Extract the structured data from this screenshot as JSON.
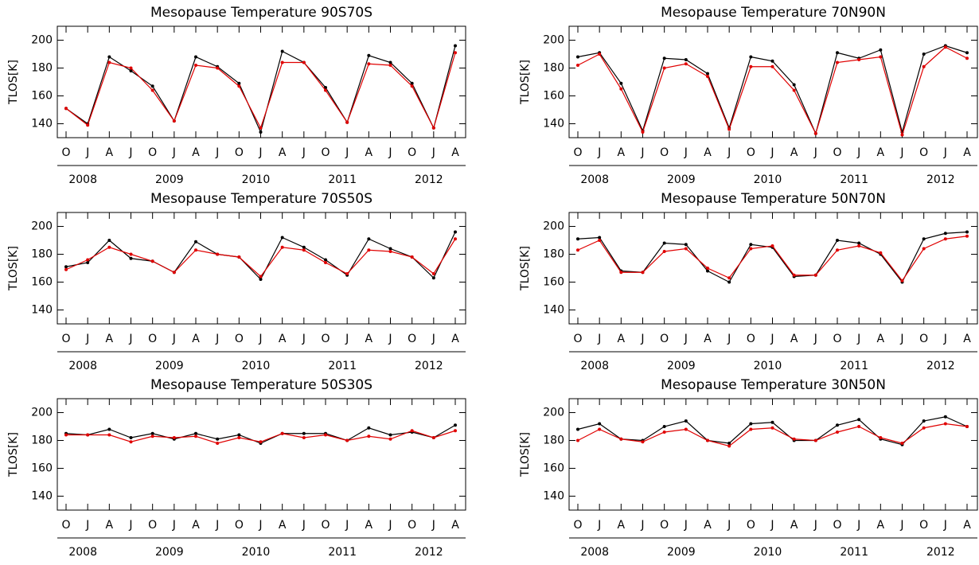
{
  "chart_data": [
    {
      "type": "line",
      "title": "Mesopause Temperature 90S70S",
      "y_label": "TLOS[K]",
      "categories": [
        "O",
        "J",
        "A",
        "J",
        "O",
        "J",
        "A",
        "J",
        "O",
        "J",
        "A",
        "J",
        "O",
        "J",
        "A",
        "J",
        "O",
        "J",
        "A"
      ],
      "year_labels": [
        "2008",
        "2009",
        "2010",
        "2011",
        "2012"
      ],
      "ylim": [
        130,
        210
      ],
      "yticks": [
        140,
        160,
        180,
        200
      ],
      "series": [
        {
          "color": "#000000",
          "values": [
            151,
            140,
            188,
            178,
            167,
            142,
            188,
            181,
            169,
            134,
            192,
            184,
            166,
            141,
            189,
            184,
            169,
            137,
            196
          ]
        },
        {
          "color": "#e00000",
          "values": [
            151,
            139,
            184,
            180,
            164,
            142,
            182,
            180,
            167,
            137,
            184,
            184,
            164,
            141,
            183,
            182,
            167,
            137,
            191
          ]
        }
      ]
    },
    {
      "type": "line",
      "title": "Mesopause Temperature 70N90N",
      "y_label": "TLOS[K]",
      "categories": [
        "O",
        "J",
        "A",
        "J",
        "O",
        "J",
        "A",
        "J",
        "O",
        "J",
        "A",
        "J",
        "O",
        "J",
        "A",
        "J",
        "O",
        "J",
        "A"
      ],
      "year_labels": [
        "2008",
        "2009",
        "2010",
        "2011",
        "2012"
      ],
      "ylim": [
        130,
        210
      ],
      "yticks": [
        140,
        160,
        180,
        200
      ],
      "series": [
        {
          "color": "#000000",
          "values": [
            188,
            191,
            169,
            135,
            187,
            186,
            176,
            137,
            188,
            185,
            168,
            133,
            191,
            187,
            193,
            134,
            190,
            196,
            191
          ]
        },
        {
          "color": "#e00000",
          "values": [
            182,
            190,
            165,
            134,
            180,
            183,
            174,
            136,
            181,
            181,
            164,
            133,
            184,
            186,
            188,
            132,
            181,
            195,
            187
          ]
        }
      ]
    },
    {
      "type": "line",
      "title": "Mesopause Temperature 70S50S",
      "y_label": "TLOS[K]",
      "categories": [
        "O",
        "J",
        "A",
        "J",
        "O",
        "J",
        "A",
        "J",
        "O",
        "J",
        "A",
        "J",
        "O",
        "J",
        "A",
        "J",
        "O",
        "J",
        "A"
      ],
      "year_labels": [
        "2008",
        "2009",
        "2010",
        "2011",
        "2012"
      ],
      "ylim": [
        130,
        210
      ],
      "yticks": [
        140,
        160,
        180,
        200
      ],
      "series": [
        {
          "color": "#000000",
          "values": [
            171,
            174,
            190,
            177,
            175,
            167,
            189,
            180,
            178,
            162,
            192,
            185,
            176,
            165,
            191,
            184,
            178,
            163,
            196
          ]
        },
        {
          "color": "#e00000",
          "values": [
            169,
            176,
            185,
            180,
            175,
            167,
            183,
            180,
            178,
            164,
            185,
            183,
            174,
            166,
            183,
            182,
            178,
            166,
            191
          ]
        }
      ]
    },
    {
      "type": "line",
      "title": "Mesopause Temperature 50N70N",
      "y_label": "TLOS[K]",
      "categories": [
        "O",
        "J",
        "A",
        "J",
        "O",
        "J",
        "A",
        "J",
        "O",
        "J",
        "A",
        "J",
        "O",
        "J",
        "A",
        "J",
        "O",
        "J",
        "A"
      ],
      "year_labels": [
        "2008",
        "2009",
        "2010",
        "2011",
        "2012"
      ],
      "ylim": [
        130,
        210
      ],
      "yticks": [
        140,
        160,
        180,
        200
      ],
      "series": [
        {
          "color": "#000000",
          "values": [
            191,
            192,
            168,
            167,
            188,
            187,
            168,
            160,
            187,
            185,
            164,
            165,
            190,
            188,
            180,
            160,
            191,
            195,
            196
          ]
        },
        {
          "color": "#e00000",
          "values": [
            183,
            190,
            167,
            167,
            182,
            184,
            170,
            163,
            184,
            186,
            165,
            165,
            183,
            186,
            181,
            161,
            184,
            191,
            193
          ]
        }
      ]
    },
    {
      "type": "line",
      "title": "Mesopause Temperature 50S30S",
      "y_label": "TLOS[K]",
      "categories": [
        "O",
        "J",
        "A",
        "J",
        "O",
        "J",
        "A",
        "J",
        "O",
        "J",
        "A",
        "J",
        "O",
        "J",
        "A",
        "J",
        "O",
        "J",
        "A"
      ],
      "year_labels": [
        "2008",
        "2009",
        "2010",
        "2011",
        "2012"
      ],
      "ylim": [
        130,
        210
      ],
      "yticks": [
        140,
        160,
        180,
        200
      ],
      "series": [
        {
          "color": "#000000",
          "values": [
            185,
            184,
            188,
            182,
            185,
            181,
            185,
            181,
            184,
            178,
            185,
            185,
            185,
            180,
            189,
            184,
            186,
            182,
            191
          ]
        },
        {
          "color": "#e00000",
          "values": [
            184,
            184,
            184,
            179,
            183,
            182,
            183,
            178,
            182,
            179,
            185,
            182,
            184,
            180,
            183,
            181,
            187,
            182,
            187
          ]
        }
      ]
    },
    {
      "type": "line",
      "title": "Mesopause Temperature 30N50N",
      "y_label": "TLOS[K]",
      "categories": [
        "O",
        "J",
        "A",
        "J",
        "O",
        "J",
        "A",
        "J",
        "O",
        "J",
        "A",
        "J",
        "O",
        "J",
        "A",
        "J",
        "O",
        "J",
        "A"
      ],
      "year_labels": [
        "2008",
        "2009",
        "2010",
        "2011",
        "2012"
      ],
      "ylim": [
        130,
        210
      ],
      "yticks": [
        140,
        160,
        180,
        200
      ],
      "series": [
        {
          "color": "#000000",
          "values": [
            188,
            192,
            181,
            180,
            190,
            194,
            180,
            178,
            192,
            193,
            180,
            180,
            191,
            195,
            181,
            177,
            194,
            197,
            190
          ]
        },
        {
          "color": "#e00000",
          "values": [
            180,
            188,
            181,
            179,
            186,
            188,
            180,
            176,
            188,
            189,
            181,
            180,
            186,
            190,
            182,
            178,
            189,
            192,
            190
          ]
        }
      ]
    }
  ]
}
